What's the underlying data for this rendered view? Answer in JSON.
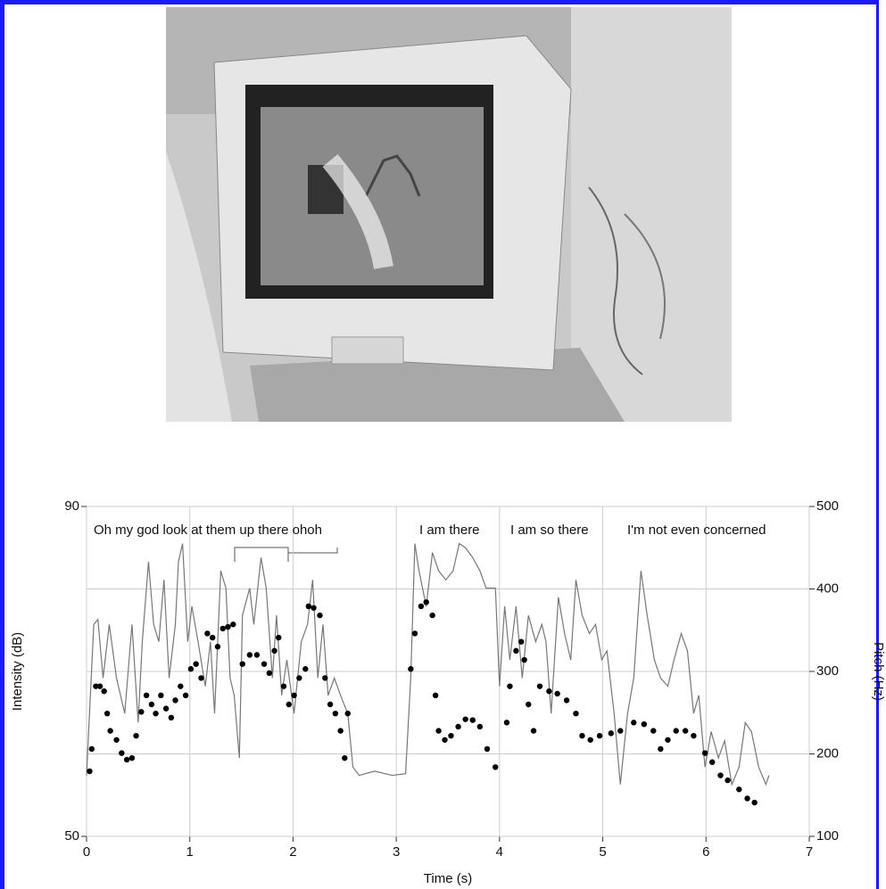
{
  "chart_data": {
    "type": "combo",
    "xlabel": "Time (s)",
    "ylabel": "Intensity (dB)",
    "y2label": "Pitch (Hz)",
    "annotations": [
      "Oh my god look at them up there ohoh",
      "I am there",
      "I am so there",
      "I'm not even concerned"
    ],
    "xlim": [
      0,
      7
    ],
    "xticks": [
      0,
      1,
      2,
      3,
      4,
      5,
      6,
      7
    ],
    "ylim": [
      50,
      90
    ],
    "yticks": [
      50,
      90
    ],
    "y2lim": [
      100,
      500
    ],
    "y2ticks": [
      100,
      200,
      300,
      400,
      500
    ],
    "grid": true,
    "series": [
      {
        "type": "line",
        "color": "#777777",
        "x": [
          0,
          0.07,
          0.11,
          0.16,
          0.22,
          0.29,
          0.37,
          0.44,
          0.5,
          0.54,
          0.6,
          0.65,
          0.7,
          0.75,
          0.8,
          0.86,
          0.89,
          0.93,
          0.98,
          1.02,
          1.08,
          1.15,
          1.2,
          1.24,
          1.3,
          1.35,
          1.39,
          1.43,
          1.48,
          1.51,
          1.58,
          1.62,
          1.69,
          1.74,
          1.8,
          1.84,
          1.89,
          1.94,
          2.01,
          2.08,
          2.14,
          2.19,
          2.24,
          2.29,
          2.34,
          2.4,
          2.46,
          2.53,
          2.58,
          2.64,
          2.79,
          2.96,
          3.09,
          3.14,
          3.18,
          3.22,
          3.29,
          3.35,
          3.41,
          3.48,
          3.55,
          3.61,
          3.67,
          3.74,
          3.81,
          3.87,
          3.96,
          4,
          4.05,
          4.1,
          4.16,
          4.22,
          4.28,
          4.35,
          4.41,
          4.45,
          4.5,
          4.57,
          4.63,
          4.69,
          4.74,
          4.8,
          4.87,
          4.93,
          4.99,
          5.04,
          5.11,
          5.17,
          5.24,
          5.3,
          5.37,
          5.43,
          5.5,
          5.56,
          5.63,
          5.69,
          5.76,
          5.82,
          5.88,
          5.93,
          5.99,
          6.05,
          6.12,
          6.18,
          6.25,
          6.32,
          6.38,
          6.44,
          6.51,
          6.58,
          6.61
        ],
        "values": [
          57.4,
          75.7,
          76.3,
          69.2,
          75.7,
          69.2,
          64.9,
          75.7,
          63.8,
          73.6,
          83.3,
          75.7,
          73.6,
          81.1,
          69.2,
          75.7,
          83.3,
          85.5,
          73.6,
          77.9,
          73.6,
          68.2,
          73.6,
          64.9,
          82.2,
          80.1,
          69.2,
          67.1,
          59.5,
          76.8,
          80.1,
          75.7,
          83.8,
          80.1,
          69.2,
          76.8,
          67.1,
          71.4,
          64.9,
          73.6,
          75.7,
          81.1,
          69.2,
          75.7,
          67.1,
          69.2,
          67.1,
          64.9,
          58.4,
          57.4,
          57.9,
          57.4,
          57.6,
          69.2,
          85.5,
          82.2,
          77.9,
          84.4,
          82.2,
          81.1,
          82.2,
          85.5,
          85.0,
          83.8,
          82.2,
          80.1,
          80.1,
          68.2,
          77.9,
          71.4,
          77.9,
          69.2,
          76.8,
          73.6,
          75.7,
          73.6,
          64.9,
          79.0,
          74.6,
          71.4,
          81.1,
          76.8,
          74.6,
          75.7,
          71.4,
          72.5,
          64.9,
          56.3,
          64.9,
          69.2,
          82.2,
          76.8,
          71.4,
          69.2,
          68.2,
          71.4,
          74.6,
          72.5,
          64.9,
          67.1,
          58.4,
          62.7,
          59.5,
          61.6,
          56.3,
          58.4,
          63.8,
          62.7,
          58.4,
          56.3,
          57.4
        ]
      },
      {
        "type": "scatter",
        "color": "#000000",
        "axis": "y2",
        "x": [
          0.03,
          0.05,
          0.09,
          0.13,
          0.17,
          0.2,
          0.23,
          0.29,
          0.34,
          0.39,
          0.44,
          0.48,
          0.53,
          0.58,
          0.63,
          0.67,
          0.72,
          0.77,
          0.82,
          0.86,
          0.91,
          0.96,
          1.01,
          1.06,
          1.11,
          1.17,
          1.22,
          1.27,
          1.32,
          1.37,
          1.42,
          1.51,
          1.58,
          1.65,
          1.72,
          1.77,
          1.82,
          1.86,
          1.91,
          1.96,
          2.01,
          2.06,
          2.12,
          2.15,
          2.2,
          2.26,
          2.31,
          2.36,
          2.41,
          2.46,
          2.5,
          2.53,
          3.14,
          3.18,
          3.24,
          3.29,
          3.35,
          3.38,
          3.41,
          3.47,
          3.53,
          3.6,
          3.67,
          3.74,
          3.81,
          3.88,
          3.96,
          4.07,
          4.1,
          4.16,
          4.21,
          4.24,
          4.28,
          4.33,
          4.39,
          4.48,
          4.56,
          4.65,
          4.74,
          4.8,
          4.88,
          4.97,
          5.08,
          5.17,
          5.3,
          5.4,
          5.49,
          5.56,
          5.63,
          5.71,
          5.8,
          5.88,
          5.99,
          6.06,
          6.14,
          6.21,
          6.32,
          6.4,
          6.47
        ],
        "values": [
          179,
          206,
          282,
          282,
          276,
          249,
          228,
          217,
          201,
          193,
          195,
          222,
          251,
          271,
          260,
          249,
          271,
          255,
          244,
          265,
          282,
          271,
          303,
          309,
          292,
          346,
          341,
          330,
          352,
          354,
          357,
          309,
          320,
          320,
          309,
          298,
          325,
          341,
          282,
          260,
          271,
          292,
          303,
          379,
          377,
          368,
          292,
          260,
          249,
          228,
          195,
          249,
          303,
          346,
          379,
          384,
          368,
          271,
          228,
          217,
          222,
          233,
          242,
          241,
          233,
          206,
          184,
          238,
          282,
          325,
          336,
          314,
          260,
          228,
          282,
          276,
          273,
          265,
          249,
          222,
          217,
          222,
          225,
          228,
          238,
          236,
          228,
          206,
          217,
          228,
          228,
          222,
          201,
          190,
          174,
          168,
          157,
          146,
          141
        ]
      }
    ]
  }
}
